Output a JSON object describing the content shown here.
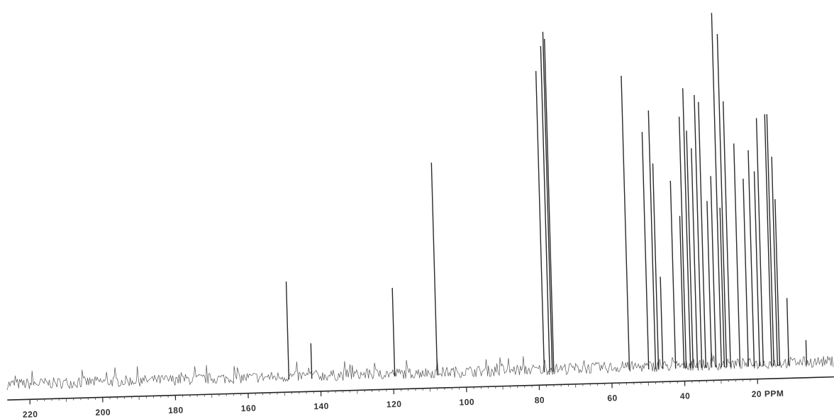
{
  "chart_data": {
    "type": "spectrum",
    "x": [
      148.7,
      142.4,
      119.6,
      107.9,
      78.5,
      77.0,
      76.3,
      75.9,
      55.1,
      49.8,
      47.9,
      47.1,
      45.9,
      42.4,
      40.1,
      39.5,
      38.3,
      37.6,
      36.4,
      35.2,
      34.1,
      32.5,
      31.3,
      29.8,
      29.0,
      28.4,
      27.3,
      24.7,
      22.4,
      20.8,
      19.3,
      18.3,
      16.0,
      15.4,
      14.4,
      13.8,
      11.3,
      6.4
    ],
    "values": [
      27.6,
      10,
      25,
      60,
      85,
      92,
      96,
      94,
      83,
      67,
      73,
      58,
      26,
      53,
      43,
      71,
      79,
      67,
      62,
      77,
      75,
      47,
      54,
      100,
      45,
      94,
      75,
      63,
      53,
      61,
      55,
      70,
      71,
      71,
      59,
      47,
      19,
      7
    ],
    "color": "#2a2a2a",
    "xlim": [
      226.2,
      -1
    ],
    "ylim": [
      0,
      100
    ],
    "xticks": [
      220,
      200,
      180,
      160,
      140,
      120,
      100,
      80,
      60,
      40,
      {
        "value": 20,
        "label": "20 PPM"
      }
    ]
  }
}
